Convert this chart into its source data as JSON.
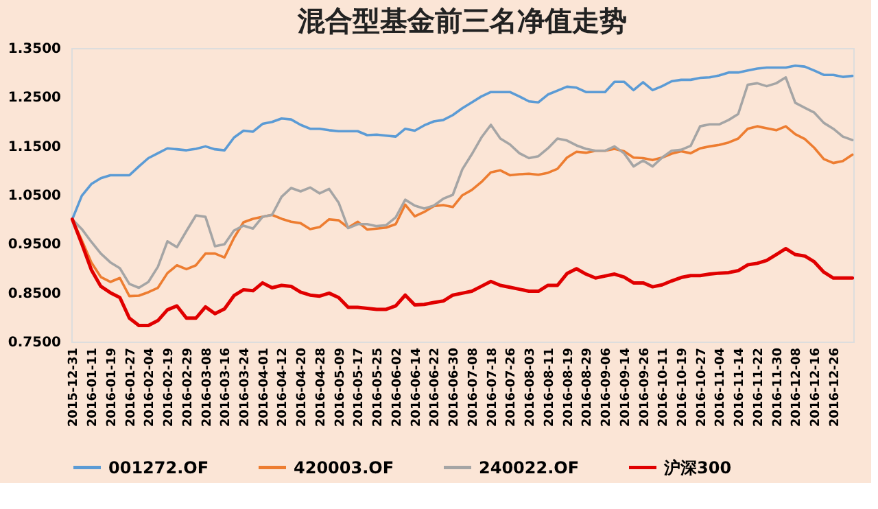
{
  "chart_data": {
    "type": "line",
    "title": "混合型基金前三名净值走势",
    "categories": [
      "2015-12-31",
      null,
      "2016-01-11",
      null,
      "2016-01-19",
      null,
      "2016-01-27",
      null,
      "2016-02-04",
      null,
      "2016-02-19",
      null,
      "2016-02-29",
      null,
      "2016-03-08",
      null,
      "2016-03-16",
      null,
      "2016-03-24",
      null,
      "2016-04-01",
      null,
      "2016-04-12",
      null,
      "2016-04-20",
      null,
      "2016-04-28",
      null,
      "2016-05-09",
      null,
      "2016-05-17",
      null,
      "2016-05-25",
      null,
      "2016-06-02",
      null,
      "2016-06-14",
      null,
      "2016-06-22",
      null,
      "2016-06-30",
      null,
      "2016-07-08",
      null,
      "2016-07-18",
      null,
      "2016-07-26",
      null,
      "2016-08-03",
      null,
      "2016-08-11",
      null,
      "2016-08-19",
      null,
      "2016-08-29",
      null,
      "2016-09-06",
      null,
      "2016-09-14",
      null,
      "2016-09-26",
      null,
      "2016-10-11",
      null,
      "2016-10-19",
      null,
      "2016-10-27",
      null,
      "2016-11-04",
      null,
      "2016-11-14",
      null,
      "2016-11-22",
      null,
      "2016-11-30",
      null,
      "2016-12-08",
      null,
      "2016-12-16",
      null,
      "2016-12-26",
      null,
      null
    ],
    "series": [
      {
        "name": "001272.OF",
        "color": "#5b9bd5",
        "values": [
          1.0,
          1.048,
          1.072,
          1.084,
          1.09,
          1.09,
          1.09,
          1.108,
          1.125,
          1.135,
          1.145,
          1.143,
          1.141,
          1.144,
          1.149,
          1.143,
          1.141,
          1.167,
          1.181,
          1.179,
          1.195,
          1.199,
          1.206,
          1.204,
          1.193,
          1.185,
          1.185,
          1.182,
          1.18,
          1.18,
          1.18,
          1.172,
          1.173,
          1.171,
          1.169,
          1.185,
          1.181,
          1.192,
          1.2,
          1.203,
          1.213,
          1.227,
          1.239,
          1.251,
          1.26,
          1.26,
          1.26,
          1.251,
          1.241,
          1.239,
          1.255,
          1.263,
          1.271,
          1.269,
          1.26,
          1.26,
          1.26,
          1.281,
          1.281,
          1.264,
          1.28,
          1.264,
          1.272,
          1.282,
          1.285,
          1.285,
          1.289,
          1.29,
          1.294,
          1.3,
          1.3,
          1.304,
          1.308,
          1.31,
          1.31,
          1.31,
          1.314,
          1.312,
          1.304,
          1.295,
          1.295,
          1.291,
          1.293
        ]
      },
      {
        "name": "420003.OF",
        "color": "#ed7d31",
        "values": [
          1.0,
          0.957,
          0.912,
          0.882,
          0.872,
          0.88,
          0.843,
          0.844,
          0.851,
          0.86,
          0.89,
          0.906,
          0.898,
          0.906,
          0.93,
          0.93,
          0.922,
          0.962,
          0.994,
          1.001,
          1.005,
          1.009,
          1.001,
          0.995,
          0.992,
          0.98,
          0.984,
          1.0,
          0.998,
          0.983,
          0.995,
          0.979,
          0.981,
          0.983,
          0.99,
          1.03,
          1.006,
          1.015,
          1.027,
          1.029,
          1.025,
          1.049,
          1.06,
          1.076,
          1.096,
          1.1,
          1.09,
          1.092,
          1.093,
          1.091,
          1.095,
          1.103,
          1.126,
          1.138,
          1.136,
          1.14,
          1.14,
          1.144,
          1.139,
          1.126,
          1.125,
          1.121,
          1.126,
          1.134,
          1.139,
          1.135,
          1.145,
          1.149,
          1.152,
          1.157,
          1.165,
          1.185,
          1.19,
          1.186,
          1.182,
          1.19,
          1.174,
          1.164,
          1.146,
          1.123,
          1.115,
          1.119,
          1.132
        ]
      },
      {
        "name": "240022.OF",
        "color": "#a5a5a5",
        "values": [
          1.0,
          0.98,
          0.954,
          0.93,
          0.912,
          0.9,
          0.868,
          0.86,
          0.872,
          0.903,
          0.955,
          0.943,
          0.976,
          1.008,
          1.005,
          0.945,
          0.949,
          0.977,
          0.987,
          0.981,
          1.005,
          1.009,
          1.046,
          1.064,
          1.057,
          1.065,
          1.053,
          1.062,
          1.034,
          0.982,
          0.99,
          0.99,
          0.986,
          0.988,
          1.004,
          1.04,
          1.028,
          1.022,
          1.028,
          1.042,
          1.05,
          1.102,
          1.133,
          1.167,
          1.193,
          1.165,
          1.153,
          1.135,
          1.125,
          1.129,
          1.145,
          1.165,
          1.161,
          1.151,
          1.144,
          1.14,
          1.14,
          1.149,
          1.135,
          1.108,
          1.12,
          1.108,
          1.126,
          1.14,
          1.142,
          1.15,
          1.19,
          1.194,
          1.194,
          1.203,
          1.215,
          1.275,
          1.278,
          1.272,
          1.278,
          1.29,
          1.238,
          1.228,
          1.218,
          1.197,
          1.185,
          1.169,
          1.162
        ]
      },
      {
        "name": "沪深300",
        "color": "#e00000",
        "values": [
          1.0,
          0.95,
          0.897,
          0.863,
          0.85,
          0.84,
          0.798,
          0.783,
          0.783,
          0.793,
          0.815,
          0.823,
          0.798,
          0.798,
          0.821,
          0.807,
          0.817,
          0.844,
          0.856,
          0.854,
          0.87,
          0.86,
          0.865,
          0.863,
          0.851,
          0.845,
          0.843,
          0.849,
          0.84,
          0.82,
          0.82,
          0.818,
          0.816,
          0.816,
          0.823,
          0.845,
          0.825,
          0.826,
          0.83,
          0.833,
          0.845,
          0.849,
          0.853,
          0.863,
          0.873,
          0.865,
          0.861,
          0.857,
          0.853,
          0.853,
          0.865,
          0.865,
          0.889,
          0.899,
          0.888,
          0.88,
          0.884,
          0.888,
          0.882,
          0.87,
          0.87,
          0.862,
          0.866,
          0.874,
          0.881,
          0.885,
          0.885,
          0.888,
          0.89,
          0.891,
          0.895,
          0.907,
          0.91,
          0.916,
          0.928,
          0.94,
          0.928,
          0.925,
          0.913,
          0.892,
          0.88,
          0.88,
          0.88
        ]
      }
    ],
    "ylim": [
      0.75,
      1.35
    ],
    "yticks": [
      {
        "value": 0.75,
        "label": "0.7500"
      },
      {
        "value": 0.85,
        "label": "0.8500"
      },
      {
        "value": 0.95,
        "label": "0.9500"
      },
      {
        "value": 1.05,
        "label": "1.0500"
      },
      {
        "value": 1.15,
        "label": "1.1500"
      },
      {
        "value": 1.25,
        "label": "1.2500"
      },
      {
        "value": 1.35,
        "label": "1.3500"
      }
    ],
    "grid": false,
    "legend": "bottom",
    "marker": "none",
    "line_style": "solid"
  }
}
